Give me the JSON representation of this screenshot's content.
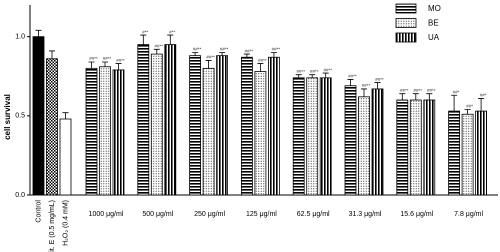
{
  "chart_data": {
    "type": "bar",
    "y_label": "cell survival",
    "ylim": [
      0,
      1.2
    ],
    "yticks": [
      {
        "value": 0,
        "label": "0.0"
      },
      {
        "value": 0.5,
        "label": "0.5"
      },
      {
        "value": 1,
        "label": "1.0"
      }
    ],
    "controls": [
      {
        "name": "Control",
        "value": 1.0,
        "error": 0.04,
        "pattern": "solid"
      },
      {
        "name": "Vit. E (0.5 mg/mL)",
        "value": 0.86,
        "error": 0.05,
        "pattern": "checker"
      },
      {
        "name": "H₂O₂ (0.4 mM)",
        "value": 0.48,
        "error": 0.04,
        "pattern": "white"
      }
    ],
    "categories": [
      "1000 μg/ml",
      "500 μg/ml",
      "250 μg/ml",
      "125 μg/ml",
      "62.5 μg/ml",
      "31.3 μg/ml",
      "15.6 μg/ml",
      "7.8 μg/ml"
    ],
    "series": [
      {
        "name": "MO",
        "color": "#000000",
        "pattern": "horizontal-stripes",
        "values": [
          0.8,
          0.95,
          0.88,
          0.87,
          0.74,
          0.69,
          0.6,
          0.53
        ],
        "errors": [
          0.04,
          0.06,
          0.02,
          0.02,
          0.02,
          0.04,
          0.04,
          0.1
        ],
        "annotations": [
          "##**",
          "#**",
          "##**",
          "##**",
          "##**",
          "##**",
          "##**",
          "##*"
        ]
      },
      {
        "name": "BE",
        "color": "#000000",
        "pattern": "dots",
        "values": [
          0.81,
          0.89,
          0.8,
          0.78,
          0.74,
          0.62,
          0.6,
          0.51
        ],
        "errors": [
          0.03,
          0.03,
          0.05,
          0.05,
          0.02,
          0.05,
          0.04,
          0.03
        ],
        "annotations": [
          "##**",
          "##**",
          "##**",
          "##**",
          "##**",
          "##**",
          "##**",
          "##*"
        ]
      },
      {
        "name": "UA",
        "color": "#000000",
        "pattern": "vertical-stripes",
        "values": [
          0.79,
          0.95,
          0.88,
          0.87,
          0.74,
          0.67,
          0.6,
          0.53
        ],
        "errors": [
          0.04,
          0.06,
          0.02,
          0.03,
          0.03,
          0.04,
          0.04,
          0.08
        ],
        "annotations": [
          "##**",
          "#**",
          "##**",
          "##**",
          "##**",
          "##**",
          "##**",
          "##*"
        ]
      }
    ]
  }
}
